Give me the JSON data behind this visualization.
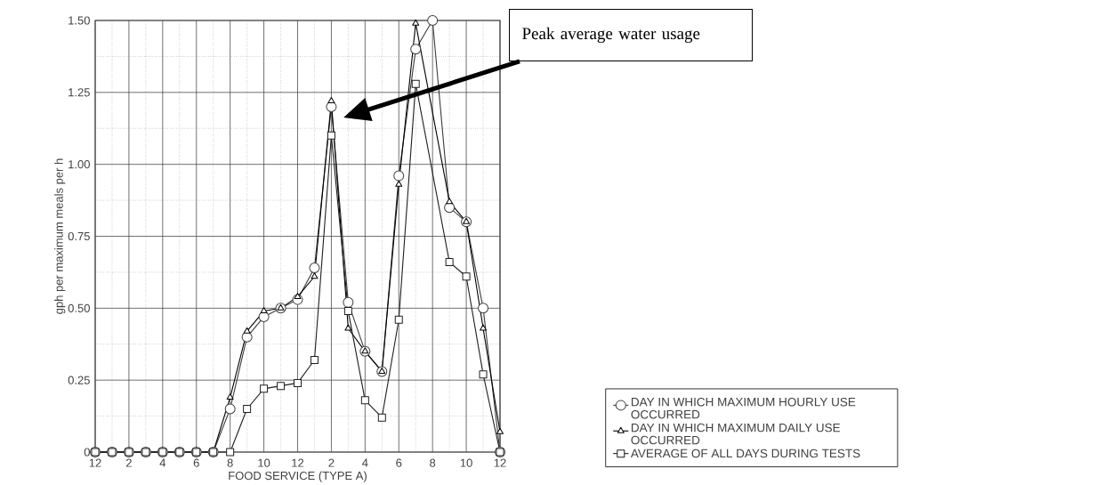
{
  "chart_data": {
    "type": "line",
    "xlabel": "FOOD SERVICE (TYPE A)",
    "ylabel": "gph per maximum meals per h",
    "categories": [
      "12",
      null,
      "2",
      null,
      "4",
      null,
      "6",
      null,
      "8",
      null,
      "10",
      null,
      "12",
      null,
      "2",
      null,
      "4",
      null,
      "6",
      null,
      "8",
      null,
      "10",
      null,
      "12"
    ],
    "ylim": [
      0,
      1.5
    ],
    "yticks": [
      {
        "value": 0,
        "label": "0"
      },
      {
        "value": 0.25,
        "label": "0.25"
      },
      {
        "value": 0.5,
        "label": "0.50"
      },
      {
        "value": 0.75,
        "label": "0.75"
      },
      {
        "value": 1,
        "label": "1.00"
      },
      {
        "value": 1.25,
        "label": "1.25"
      },
      {
        "value": 1.5,
        "label": "1.50"
      }
    ],
    "grid": true,
    "legend": "bottom right",
    "line_style": "solid",
    "series": [
      {
        "name": "DAY IN WHICH MAXIMUM HOURLY USE OCCURRED",
        "color": "#3c3c3c",
        "marker": "circle",
        "values": [
          0,
          0,
          0,
          0,
          0,
          0,
          0,
          0,
          0.15,
          0.4,
          0.47,
          0.5,
          0.53,
          0.64,
          1.2,
          0.52,
          0.35,
          0.28,
          0.96,
          1.4,
          1.5,
          0.85,
          0.8,
          0.5,
          0
        ]
      },
      {
        "name": "DAY IN WHICH MAXIMUM DAILY USE OCCURRED",
        "color": "#000000",
        "marker": "triangle",
        "values": [
          0,
          0,
          0,
          0,
          0,
          0,
          0,
          0,
          0.19,
          0.42,
          0.49,
          0.5,
          0.54,
          0.61,
          1.22,
          0.43,
          0.35,
          0.28,
          0.93,
          1.49,
          null,
          0.87,
          0.8,
          0.43,
          0.07
        ]
      },
      {
        "name": "AVERAGE OF ALL DAYS DURING TESTS",
        "color": "#1e1e1e",
        "marker": "square",
        "values": [
          0,
          0,
          0,
          0,
          0,
          0,
          0,
          0,
          0,
          0.15,
          0.22,
          0.23,
          0.24,
          0.32,
          1.1,
          0.49,
          0.18,
          0.12,
          0.46,
          1.28,
          null,
          0.66,
          0.61,
          0.27,
          0
        ]
      }
    ],
    "annotations": [
      "Peak average water usage"
    ]
  }
}
